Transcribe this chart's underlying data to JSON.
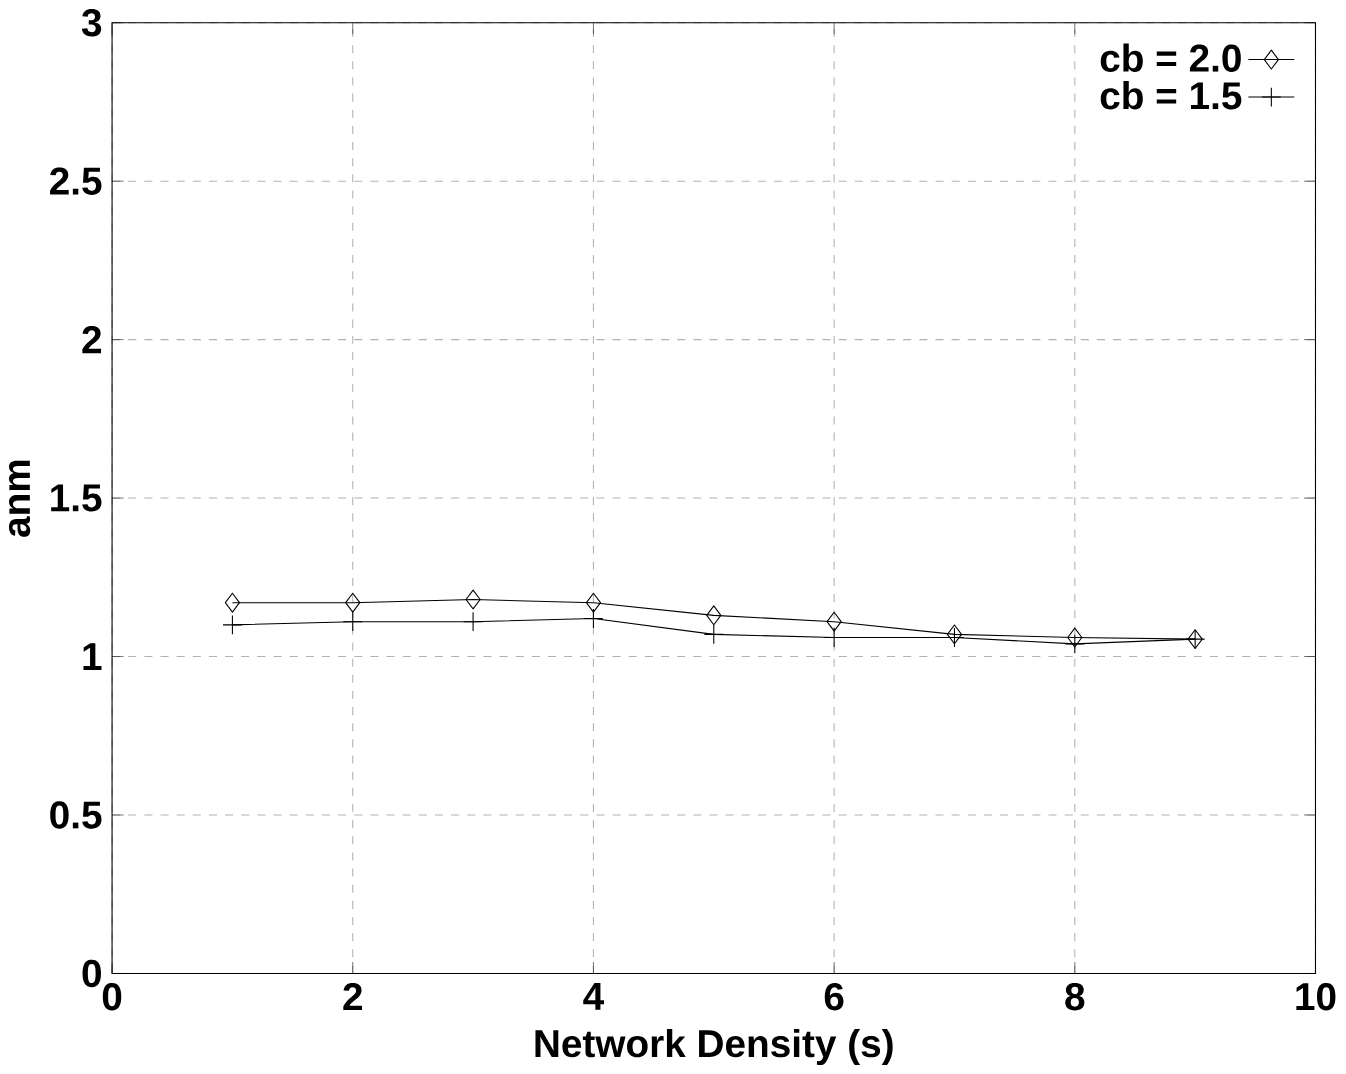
{
  "chart_data": {
    "type": "line",
    "xlabel": "Network Density (s)",
    "ylabel": "anm",
    "x": [
      1,
      2,
      3,
      4,
      5,
      6,
      7,
      8,
      9
    ],
    "series": [
      {
        "name": "cb = 2.0",
        "color": "#000000",
        "marker": "diamond",
        "values": [
          1.17,
          1.17,
          1.18,
          1.17,
          1.13,
          1.11,
          1.07,
          1.06,
          1.055
        ]
      },
      {
        "name": "cb = 1.5",
        "color": "#000000",
        "marker": "cross",
        "values": [
          1.1,
          1.11,
          1.11,
          1.12,
          1.07,
          1.06,
          1.06,
          1.04,
          1.055
        ]
      }
    ],
    "xlim": [
      0,
      10
    ],
    "ylim": [
      0,
      3
    ],
    "xticks": [
      0,
      2,
      4,
      6,
      8,
      10
    ],
    "yticks": [
      0,
      0.5,
      1,
      1.5,
      2,
      2.5,
      3
    ],
    "grid": true,
    "legend": "top right",
    "line_style": "solid"
  }
}
